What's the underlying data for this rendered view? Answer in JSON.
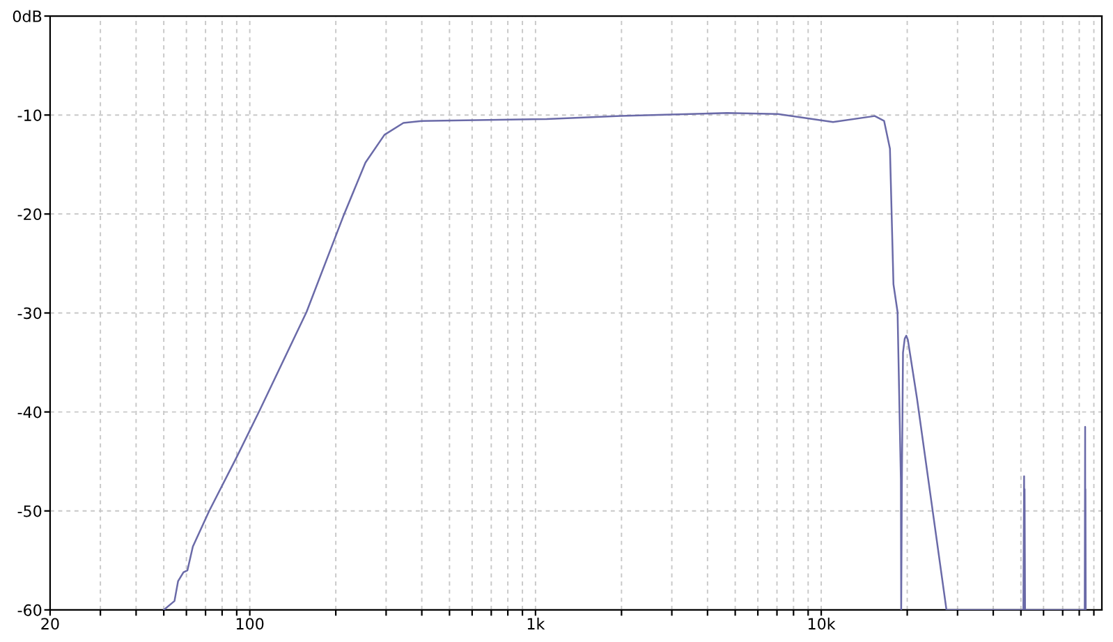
{
  "chart_data": {
    "type": "line",
    "series": [
      {
        "color": "#6a6aa8",
        "x": [
          50,
          54.5,
          56.1,
          58.6,
          60.5,
          63.2,
          72.1,
          90.2,
          108,
          158,
          212,
          254,
          296,
          345,
          400,
          1094,
          1985,
          4680,
          7050,
          11000,
          15400,
          16600,
          17400,
          17900,
          18500,
          19000,
          19050,
          19170,
          19330,
          19600,
          19850,
          20100,
          21630,
          27440,
          51000,
          51300,
          51400,
          51500,
          51700,
          83600,
          83900,
          84000,
          84100,
          84300
        ],
        "values": [
          -60,
          -59.1,
          -57.1,
          -56.2,
          -56.0,
          -53.6,
          -50.0,
          -44.5,
          -39.9,
          -29.9,
          -20.3,
          -14.8,
          -12.0,
          -10.8,
          -10.6,
          -10.4,
          -10.1,
          -9.8,
          -9.9,
          -10.7,
          -10.1,
          -10.6,
          -13.4,
          -27.1,
          -29.9,
          -46.8,
          -60,
          -46,
          -34,
          -32.6,
          -32.3,
          -32.7,
          -38.6,
          -60,
          -60,
          -46.5,
          -60,
          -47.8,
          -60,
          -60,
          -41.5,
          -60,
          -47.8,
          -60
        ]
      }
    ],
    "log": "x",
    "xlim": [
      20,
      96000
    ],
    "ylim": [
      -60,
      0
    ],
    "xticks": [
      20,
      {
        "value": 30,
        "label": null
      },
      {
        "value": 40,
        "label": null
      },
      {
        "value": 50,
        "label": null
      },
      {
        "value": 60,
        "label": null
      },
      {
        "value": 70,
        "label": null
      },
      {
        "value": 80,
        "label": null
      },
      {
        "value": 90,
        "label": null
      },
      100,
      {
        "value": 200,
        "label": null
      },
      {
        "value": 300,
        "label": null
      },
      {
        "value": 400,
        "label": null
      },
      {
        "value": 500,
        "label": null
      },
      {
        "value": 600,
        "label": null
      },
      {
        "value": 700,
        "label": null
      },
      {
        "value": 800,
        "label": null
      },
      {
        "value": 900,
        "label": null
      },
      {
        "value": 1000,
        "label": "1k"
      },
      {
        "value": 2000,
        "label": null
      },
      {
        "value": 3000,
        "label": null
      },
      {
        "value": 4000,
        "label": null
      },
      {
        "value": 5000,
        "label": null
      },
      {
        "value": 6000,
        "label": null
      },
      {
        "value": 7000,
        "label": null
      },
      {
        "value": 8000,
        "label": null
      },
      {
        "value": 9000,
        "label": null
      },
      {
        "value": 10000,
        "label": "10k"
      },
      {
        "value": 20000,
        "label": null
      },
      {
        "value": 30000,
        "label": null
      },
      {
        "value": 40000,
        "label": null
      },
      {
        "value": 50000,
        "label": null
      },
      {
        "value": 60000,
        "label": null
      },
      {
        "value": 70000,
        "label": null
      },
      {
        "value": 80000,
        "label": null
      },
      {
        "value": 90000,
        "label": null
      }
    ],
    "yticks": [
      {
        "value": 0,
        "label": "0dB"
      },
      -10,
      -20,
      -30,
      -40,
      -50,
      -60
    ],
    "grid": true,
    "marker": "none",
    "line_style": "solid"
  }
}
